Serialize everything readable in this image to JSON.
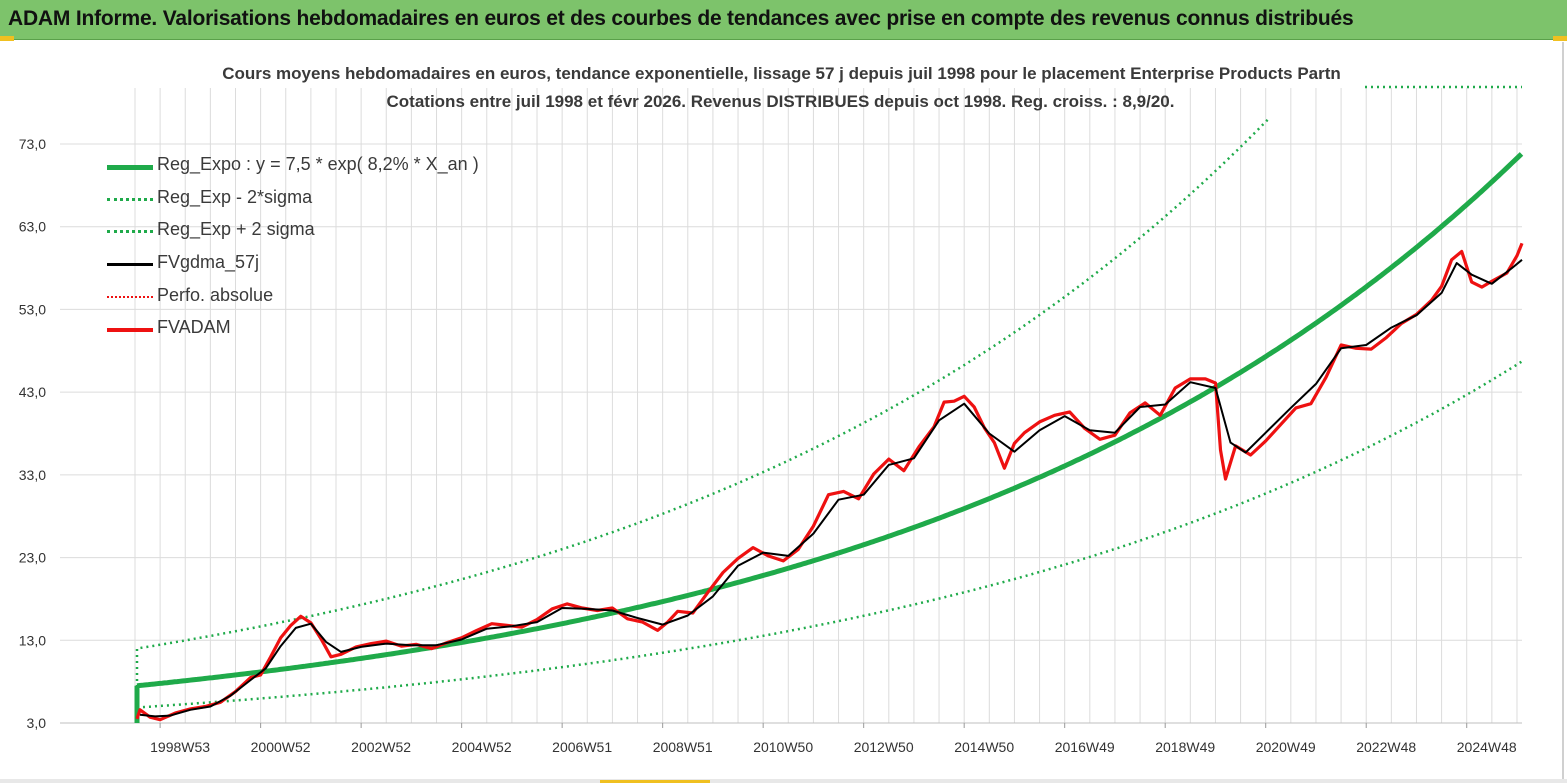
{
  "header": {
    "title": "ADAM Informe. Valorisations hebdomadaires en euros et des courbes de tendances avec prise en compte des revenus connus distribués"
  },
  "chart_data": {
    "type": "line",
    "title_line1": "Cours moyens hebdomadaires en euros, tendance exponentielle, lissage 57 j depuis juil 1998 pour le placement Enterprise Products Partn",
    "title_line2": "Cotations entre juil 1998 et févr 2026. Revenus DISTRIBUES depuis oct 1998. Reg. croiss. : 8,9/20.",
    "ylim": [
      3,
      80
    ],
    "y_ticks": [
      "73,0",
      "63,0",
      "53,0",
      "43,0",
      "33,0",
      "23,0",
      "13,0",
      "3,0"
    ],
    "y_tick_values": [
      73,
      63,
      53,
      43,
      33,
      23,
      13,
      3
    ],
    "x_ticks": [
      "1998W53",
      "2000W52",
      "2002W52",
      "2004W52",
      "2006W51",
      "2008W51",
      "2010W50",
      "2012W50",
      "2014W50",
      "2016W49",
      "2018W49",
      "2020W49",
      "2022W48",
      "2024W48"
    ],
    "x_tick_years": [
      1999.0,
      2001.0,
      2003.0,
      2005.0,
      2007.0,
      2009.0,
      2011.0,
      2013.0,
      2015.0,
      2017.0,
      2019.0,
      2021.0,
      2023.0,
      2025.0
    ],
    "x_range_years": [
      1998.54,
      2026.1
    ],
    "colors": {
      "regression": "#1faa4a",
      "band": "#1faa4a",
      "smooth": "#000000",
      "perfo": "#ee1111",
      "price": "#ee1111",
      "grid": "#dcdcdc"
    },
    "regression": {
      "a": 7.5,
      "rate": 0.082,
      "start_year": 1998.54,
      "sigma_mult_minus": 0.65,
      "sigma_mult_plus": 1.6
    },
    "series": [
      {
        "name": "FVADAM",
        "x": [
          1998.54,
          1998.6,
          1998.8,
          1999.0,
          1999.3,
          1999.6,
          1999.9,
          2000.2,
          2000.5,
          2000.8,
          2001.0,
          2001.2,
          2001.4,
          2001.6,
          2001.8,
          2002.0,
          2002.2,
          2002.4,
          2002.6,
          2002.9,
          2003.2,
          2003.5,
          2003.8,
          2004.1,
          2004.4,
          2004.7,
          2005.0,
          2005.3,
          2005.6,
          2005.9,
          2006.2,
          2006.5,
          2006.8,
          2007.1,
          2007.4,
          2007.7,
          2008.0,
          2008.3,
          2008.6,
          2008.9,
          2009.1,
          2009.3,
          2009.6,
          2009.9,
          2010.2,
          2010.5,
          2010.8,
          2011.1,
          2011.4,
          2011.7,
          2012.0,
          2012.3,
          2012.6,
          2012.9,
          2013.2,
          2013.5,
          2013.8,
          2014.1,
          2014.4,
          2014.6,
          2014.8,
          2015.0,
          2015.2,
          2015.4,
          2015.6,
          2015.8,
          2016.0,
          2016.2,
          2016.5,
          2016.8,
          2017.1,
          2017.4,
          2017.7,
          2018.0,
          2018.3,
          2018.6,
          2018.9,
          2019.2,
          2019.5,
          2019.8,
          2020.0,
          2020.1,
          2020.2,
          2020.4,
          2020.7,
          2021.0,
          2021.3,
          2021.6,
          2021.9,
          2022.2,
          2022.5,
          2022.8,
          2023.1,
          2023.4,
          2023.7,
          2024.0,
          2024.3,
          2024.5,
          2024.7,
          2024.9,
          2025.1,
          2025.3,
          2025.5,
          2025.8,
          2026.0,
          2026.1
        ],
        "values": [
          3.5,
          4.6,
          3.7,
          3.4,
          4.2,
          4.7,
          5.0,
          5.5,
          6.8,
          8.5,
          8.8,
          11.0,
          13.3,
          14.8,
          15.9,
          15.1,
          13.2,
          11.0,
          11.3,
          12.2,
          12.6,
          12.9,
          12.3,
          12.5,
          12.0,
          12.7,
          13.3,
          14.2,
          15.0,
          14.8,
          14.6,
          15.5,
          16.8,
          17.4,
          16.9,
          16.6,
          16.9,
          15.6,
          15.2,
          14.2,
          15.2,
          16.5,
          16.3,
          18.8,
          21.2,
          22.9,
          24.2,
          23.2,
          22.6,
          24.0,
          26.8,
          30.6,
          31.0,
          30.1,
          33.1,
          34.9,
          33.5,
          36.4,
          38.8,
          41.8,
          41.9,
          42.5,
          41.2,
          38.7,
          36.9,
          33.8,
          36.8,
          38.1,
          39.4,
          40.2,
          40.6,
          38.6,
          37.3,
          37.8,
          40.5,
          41.7,
          40.2,
          43.5,
          44.6,
          44.6,
          44.1,
          36.0,
          32.5,
          36.5,
          35.4,
          37.1,
          39.1,
          41.1,
          41.6,
          44.8,
          48.7,
          48.3,
          48.2,
          49.6,
          51.3,
          52.4,
          54.1,
          55.8,
          59.0,
          60.0,
          56.3,
          55.7,
          56.4,
          57.4,
          59.5,
          61.0
        ]
      },
      {
        "name": "FVgdma_57j",
        "x": [
          1998.6,
          1998.9,
          1999.2,
          1999.6,
          2000.0,
          2000.4,
          2000.8,
          2001.1,
          2001.4,
          2001.7,
          2002.0,
          2002.3,
          2002.6,
          2003.0,
          2003.5,
          2004.0,
          2004.5,
          2005.0,
          2005.5,
          2006.0,
          2006.5,
          2007.0,
          2007.5,
          2008.0,
          2008.5,
          2009.0,
          2009.5,
          2010.0,
          2010.5,
          2011.0,
          2011.5,
          2012.0,
          2012.5,
          2013.0,
          2013.5,
          2014.0,
          2014.5,
          2015.0,
          2015.5,
          2016.0,
          2016.5,
          2017.0,
          2017.5,
          2018.0,
          2018.5,
          2019.0,
          2019.5,
          2020.0,
          2020.3,
          2020.6,
          2021.0,
          2021.5,
          2022.0,
          2022.5,
          2023.0,
          2023.5,
          2024.0,
          2024.5,
          2024.8,
          2025.1,
          2025.5,
          2025.9,
          2026.1
        ],
        "values": [
          4.0,
          3.8,
          3.9,
          4.6,
          5.0,
          6.3,
          8.2,
          9.6,
          12.3,
          14.5,
          15.0,
          12.8,
          11.6,
          12.2,
          12.6,
          12.4,
          12.4,
          13.1,
          14.4,
          14.7,
          15.2,
          16.9,
          16.8,
          16.6,
          15.7,
          14.9,
          16.0,
          18.3,
          22.0,
          23.6,
          23.2,
          25.9,
          30.0,
          30.6,
          34.2,
          35.0,
          39.6,
          41.6,
          38.0,
          35.8,
          38.4,
          40.1,
          38.4,
          38.1,
          41.2,
          41.5,
          44.2,
          43.5,
          36.9,
          35.7,
          38.1,
          41.1,
          44.0,
          48.3,
          48.7,
          50.8,
          52.3,
          55.0,
          58.6,
          57.2,
          56.1,
          58.0,
          59.0
        ]
      }
    ],
    "legend": [
      {
        "key": "reg",
        "label": "Reg_Expo : y = 7,5 * exp( 8,2% *  X_an )"
      },
      {
        "key": "minus",
        "label": "Reg_Exp - 2*sigma"
      },
      {
        "key": "plus",
        "label": "Reg_Exp + 2 sigma"
      },
      {
        "key": "smooth",
        "label": "FVgdma_57j"
      },
      {
        "key": "perfo",
        "label": "Perfo. absolue"
      },
      {
        "key": "price",
        "label": "FVADAM"
      }
    ]
  }
}
